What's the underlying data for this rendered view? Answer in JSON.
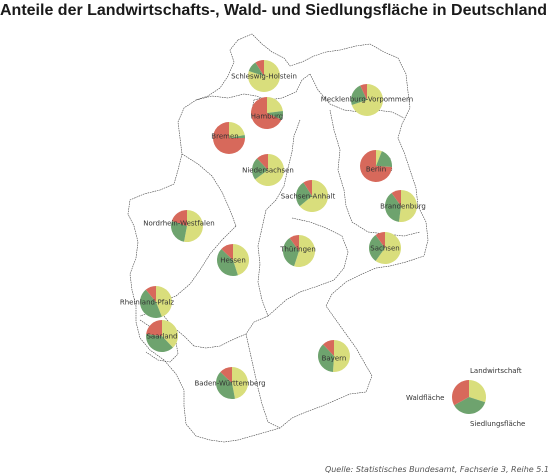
{
  "title": "Anteile der Landwirtschafts-, Wald- und Siedlungsfläche in Deutschland",
  "source": "Quelle: Statistisches Bundesamt, Fachserie 3, Reihe 5.1",
  "colors": {
    "landwirtschaft": "#d9de7c",
    "wald": "#6ea36e",
    "siedlung": "#d7695b",
    "border": "#444444"
  },
  "legend": {
    "landwirtschaft": "Landwirtschaft",
    "wald": "Waldfläche",
    "siedlung": "Siedlungsfläche"
  },
  "chart_data": {
    "type": "pie",
    "series_order": [
      "Landwirtschaft",
      "Waldfläche",
      "Siedlungsfläche"
    ],
    "states": [
      {
        "name": "Schleswig-Holstein",
        "values": [
          0.8,
          0.11,
          0.09
        ]
      },
      {
        "name": "Hamburg",
        "values": [
          0.23,
          0.09,
          0.68
        ]
      },
      {
        "name": "Mecklenburg-Vorpommern",
        "values": [
          0.7,
          0.23,
          0.07
        ]
      },
      {
        "name": "Bremen",
        "values": [
          0.22,
          0.03,
          0.75
        ]
      },
      {
        "name": "Niedersachsen",
        "values": [
          0.65,
          0.23,
          0.12
        ]
      },
      {
        "name": "Berlin",
        "values": [
          0.06,
          0.2,
          0.74
        ]
      },
      {
        "name": "Sachsen-Anhalt",
        "values": [
          0.64,
          0.27,
          0.09
        ]
      },
      {
        "name": "Brandenburg",
        "values": [
          0.52,
          0.38,
          0.1
        ]
      },
      {
        "name": "Nordrhein-Westfalen",
        "values": [
          0.53,
          0.27,
          0.2
        ]
      },
      {
        "name": "Thüringen",
        "values": [
          0.55,
          0.35,
          0.1
        ]
      },
      {
        "name": "Sachsen",
        "values": [
          0.6,
          0.3,
          0.1
        ]
      },
      {
        "name": "Hessen",
        "values": [
          0.45,
          0.42,
          0.13
        ]
      },
      {
        "name": "Rheinland-Pfalz",
        "values": [
          0.44,
          0.45,
          0.11
        ]
      },
      {
        "name": "Saarland",
        "values": [
          0.38,
          0.39,
          0.23
        ]
      },
      {
        "name": "Bayern",
        "values": [
          0.51,
          0.37,
          0.12
        ]
      },
      {
        "name": "Baden-Württemberg",
        "values": [
          0.47,
          0.4,
          0.13
        ]
      }
    ]
  }
}
